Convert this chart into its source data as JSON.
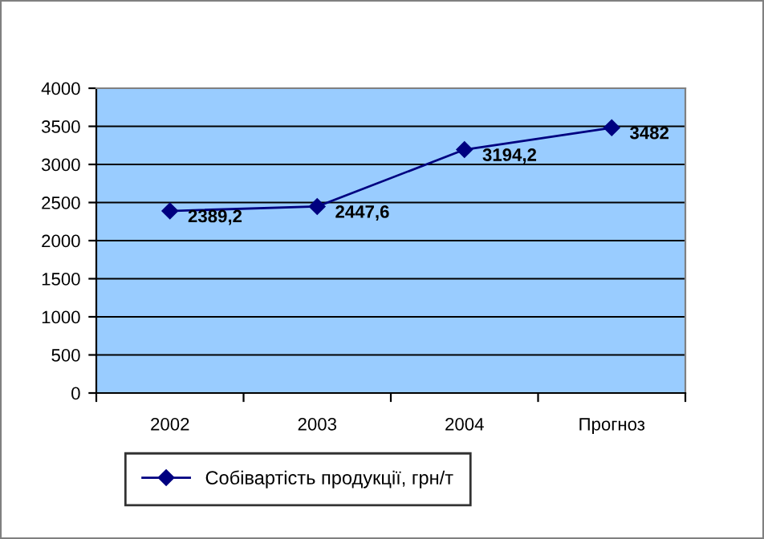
{
  "chart_data": {
    "type": "line",
    "categories": [
      "2002",
      "2003",
      "2004",
      "Прогноз"
    ],
    "series": [
      {
        "name": "Собівартість продукції, грн/т",
        "color": "#000080",
        "values": [
          2389.2,
          2447.6,
          3194.2,
          3482
        ],
        "value_labels": [
          "2389,2",
          "2447,6",
          "3194,2",
          "3482"
        ]
      }
    ],
    "ylim": [
      0,
      4000
    ],
    "yticks": [
      0,
      500,
      1000,
      1500,
      2000,
      2500,
      3000,
      3500,
      4000
    ],
    "grid": "y",
    "legend": "bottom",
    "marker": "diamond",
    "line_style": "solid"
  }
}
